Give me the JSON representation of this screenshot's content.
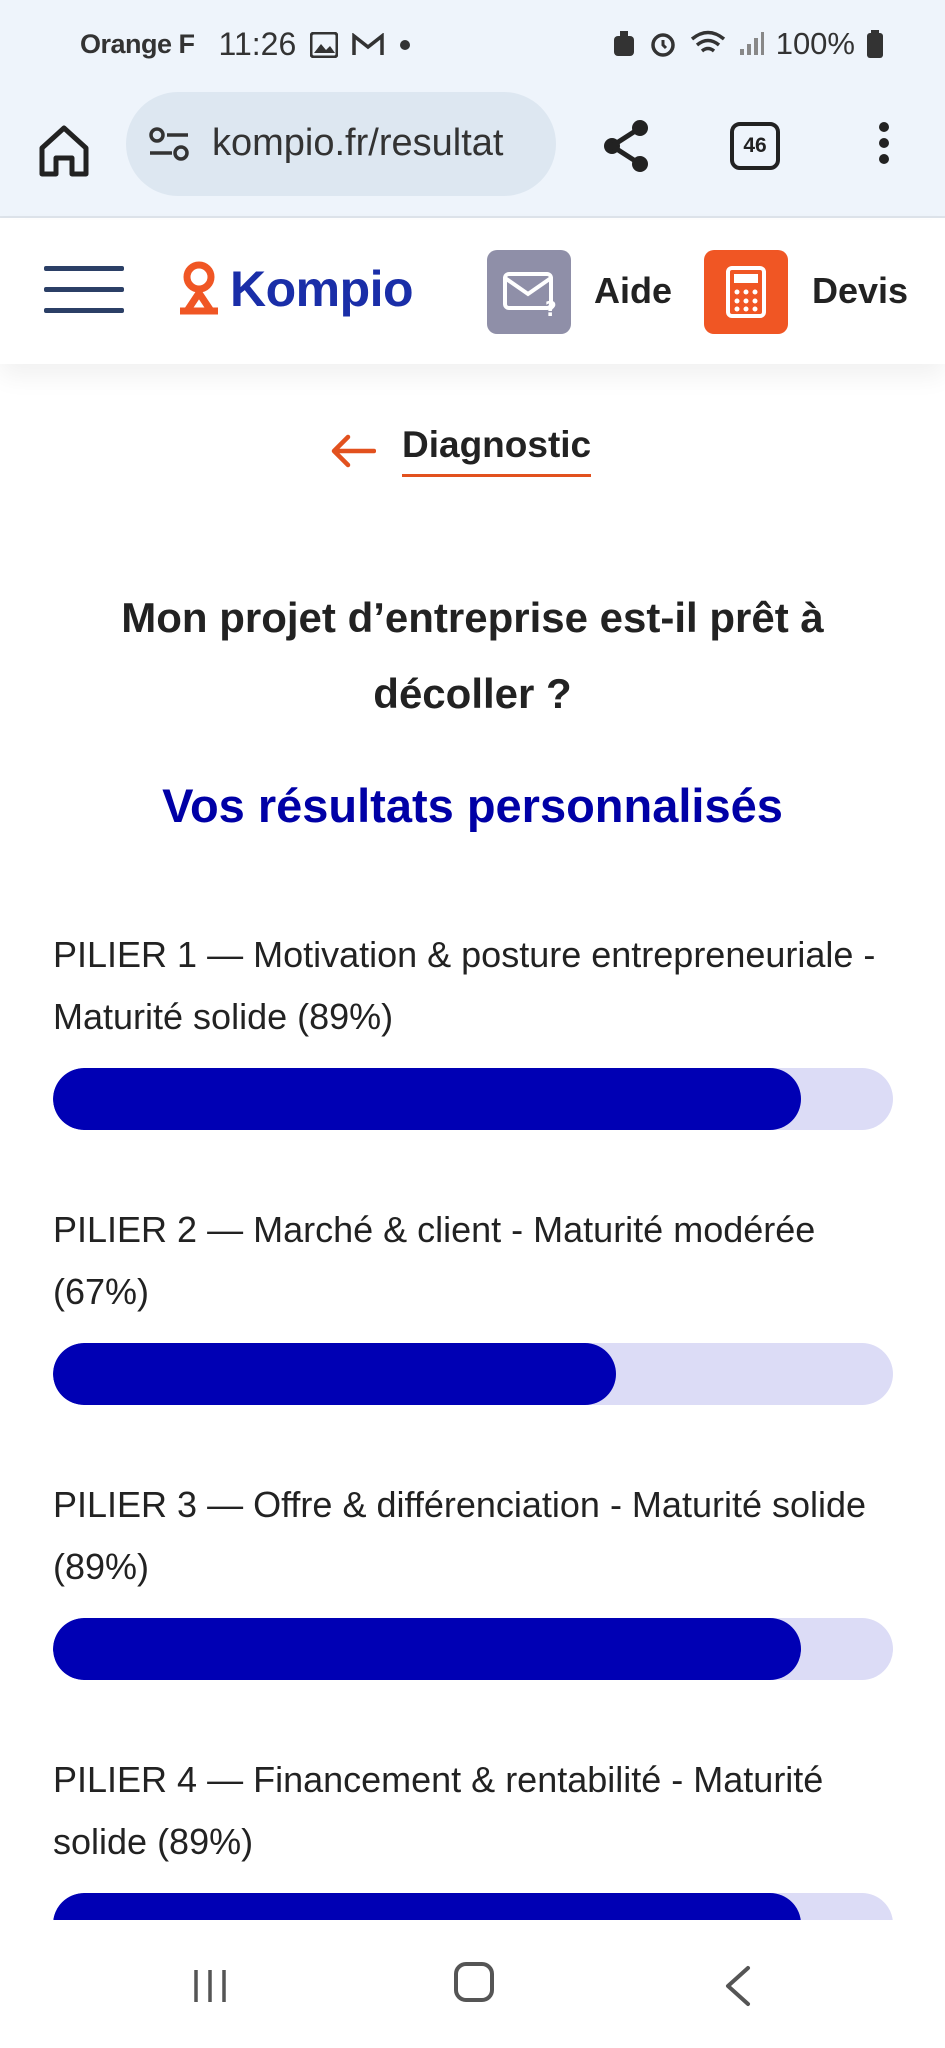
{
  "status_bar": {
    "carrier": "Orange F",
    "time": "11:26",
    "battery": "100%",
    "icons": [
      "image-icon",
      "gmail-icon",
      "dot-icon",
      "sync-icon",
      "alarm-icon",
      "wifi-icon",
      "signal-icon",
      "battery-icon"
    ]
  },
  "browser": {
    "url": "kompio.fr/resultat",
    "tab_count": "46",
    "icons": [
      "home-icon",
      "tune-icon",
      "share-icon",
      "tabs-icon",
      "more-vert-icon"
    ]
  },
  "header": {
    "logo_text": "Kompio",
    "aide_label": "Aide",
    "devis_label": "Devis",
    "colors": {
      "logo": "#1a2ea8",
      "accent": "#f05624",
      "aide_box": "#8f8fa8"
    }
  },
  "content": {
    "back_label": "Diagnostic",
    "title": "Mon projet d’entreprise est-il prêt à décoller ?",
    "subtitle": "Vos résultats personnalisés",
    "pillars": [
      {
        "label": "PILIER 1 — Motivation & posture entrepreneuriale - Maturité solide (89%)",
        "percent": 89
      },
      {
        "label": "PILIER 2 — Marché & client - Maturité modérée (67%)",
        "percent": 67
      },
      {
        "label": "PILIER 3 — Offre & différenciation - Maturité solide (89%)",
        "percent": 89
      },
      {
        "label": "PILIER 4 — Financement & rentabilité - Maturité solide (89%)",
        "percent": 89
      }
    ],
    "colors": {
      "bar_fill": "#0000b4",
      "bar_track": "#dcdcf6",
      "subtitle": "#0000a6"
    }
  },
  "nav": {
    "icons": [
      "recent-apps-icon",
      "home-nav-icon",
      "back-nav-icon"
    ]
  }
}
